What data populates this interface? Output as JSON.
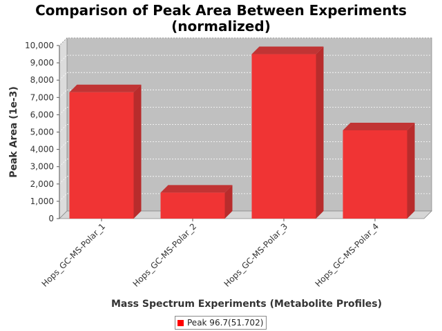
{
  "chart_data": {
    "type": "bar",
    "title_lines": [
      "Comparison of Peak Area Between Experiments",
      "(normalized)"
    ],
    "xlabel": "Mass Spectrum Experiments (Metabolite Profiles)",
    "ylabel": "Peak Area (1e-3)",
    "categories": [
      "Hops_GC-MS-Polar_1",
      "Hops_GC-MS-Polar_2",
      "Hops_GC-MS-Polar_3",
      "Hops_GC-MS-Polar_4"
    ],
    "series": [
      {
        "name": "Peak 96.7(51.702)",
        "values": [
          7300,
          1500,
          9500,
          5100
        ],
        "color": "#ff0000"
      }
    ],
    "ylim": [
      0,
      10000
    ],
    "yticks": [
      "0",
      "1,000",
      "2,000",
      "3,000",
      "4,000",
      "5,000",
      "6,000",
      "7,000",
      "8,000",
      "9,000",
      "10,000"
    ],
    "grid": true,
    "legend_position": "bottom-center",
    "plot_background": "#c0c0c0",
    "style": "3d"
  }
}
